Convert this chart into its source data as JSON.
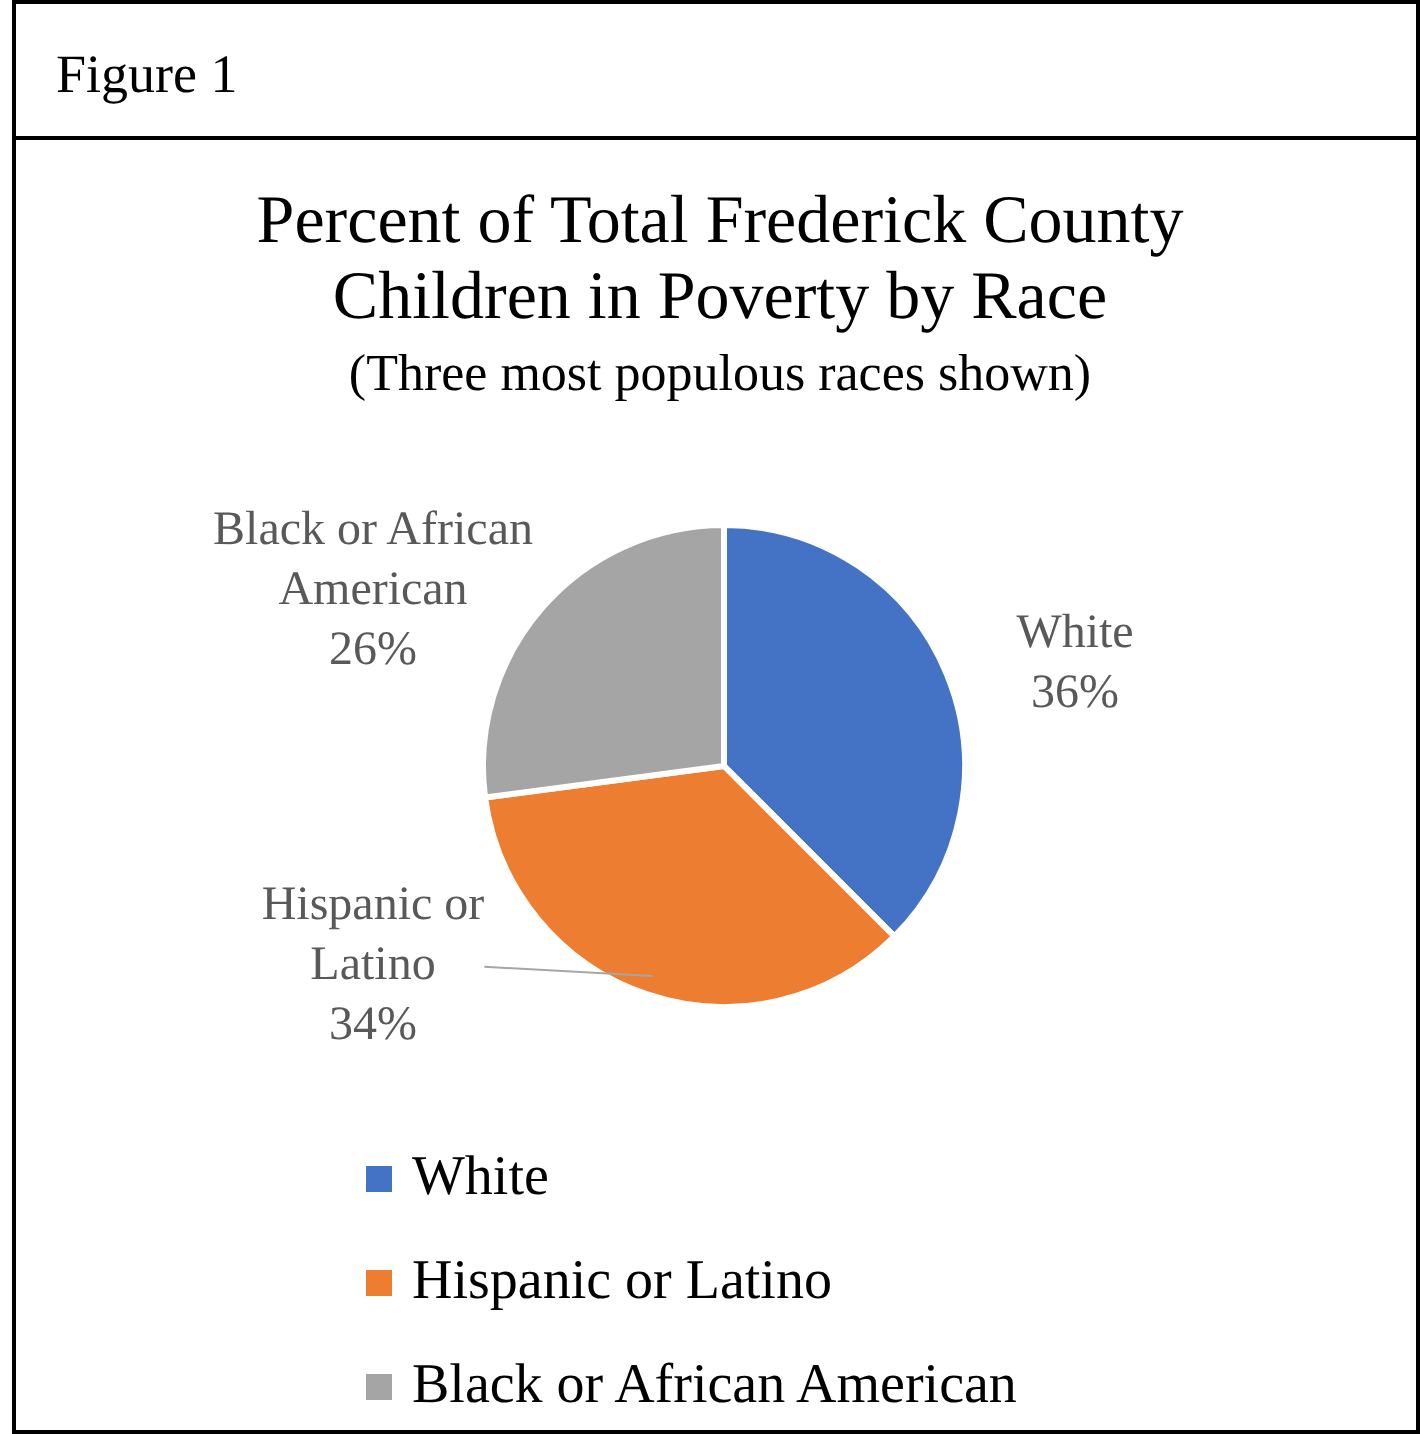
{
  "chart_data": {
    "type": "pie",
    "title": "Percent of Total Frederick County Children in Poverty by Race",
    "subtitle": "(Three most populous races shown)",
    "annotations": [
      "Figure 1"
    ],
    "categories": [
      "White",
      "Hispanic or Latino",
      "Black or African American"
    ],
    "values": [
      36,
      34,
      26
    ],
    "value_labels": [
      "36%",
      "34%",
      "26%"
    ],
    "colors": [
      "#4472c4",
      "#ed7d31",
      "#a5a5a5"
    ],
    "legend": "bottom"
  }
}
